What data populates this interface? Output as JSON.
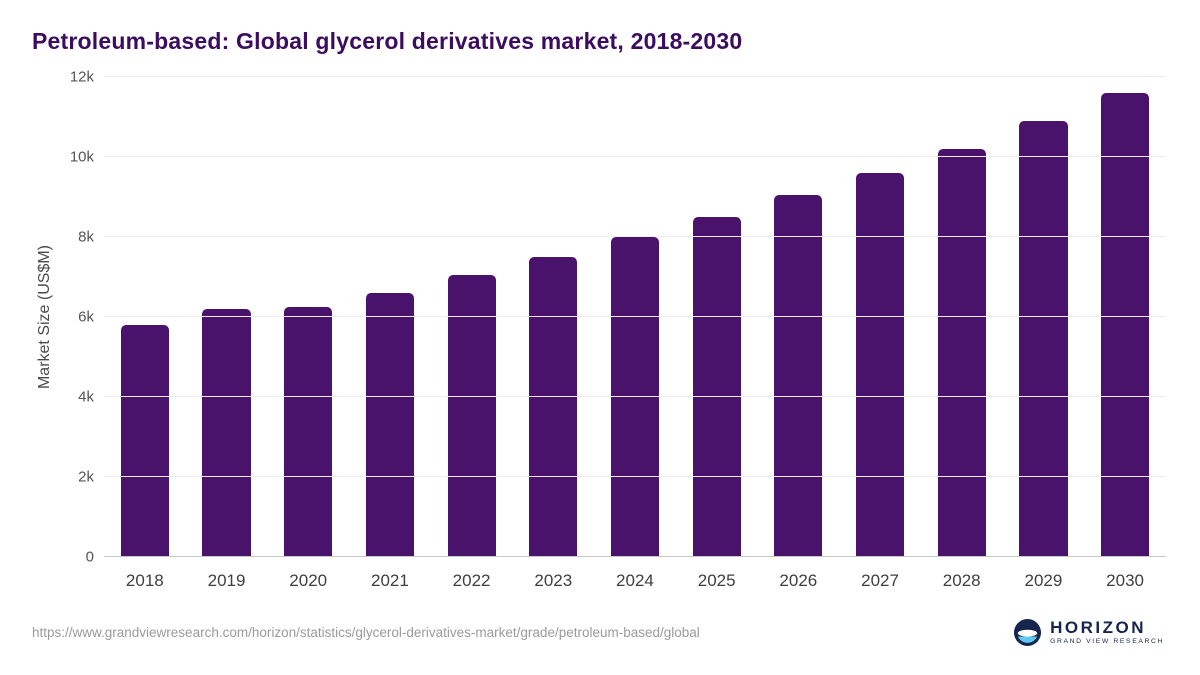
{
  "title": "Petroleum-based: Global glycerol derivatives market, 2018-2030",
  "colors": {
    "bar": "#4a136b",
    "title": "#3c0d5e",
    "gridline": "#ececec",
    "axis_line": "#c7c7c7"
  },
  "chart_data": {
    "type": "bar",
    "title": "Petroleum-based: Global glycerol derivatives market, 2018-2030",
    "categories": [
      "2018",
      "2019",
      "2020",
      "2021",
      "2022",
      "2023",
      "2024",
      "2025",
      "2026",
      "2027",
      "2028",
      "2029",
      "2030"
    ],
    "values": [
      5800,
      6200,
      6250,
      6600,
      7050,
      7500,
      8000,
      8500,
      9050,
      9600,
      10200,
      10900,
      11600
    ],
    "xlabel": "",
    "ylabel": "Market Size (US$M)",
    "ylim": [
      0,
      12000
    ],
    "yticks": [
      {
        "value": 0,
        "label": "0"
      },
      {
        "value": 2000,
        "label": "2k"
      },
      {
        "value": 4000,
        "label": "4k"
      },
      {
        "value": 6000,
        "label": "6k"
      },
      {
        "value": 8000,
        "label": "8k"
      },
      {
        "value": 10000,
        "label": "10k"
      },
      {
        "value": 12000,
        "label": "12k"
      }
    ],
    "grid": true,
    "legend": false,
    "bar_color": "#4a136b"
  },
  "footer": {
    "source_url": "https://www.grandviewresearch.com/horizon/statistics/glycerol-derivatives-market/grade/petroleum-based/global",
    "logo": {
      "brand": "HORIZON",
      "sub_brand": "GRAND VIEW RESEARCH"
    }
  }
}
